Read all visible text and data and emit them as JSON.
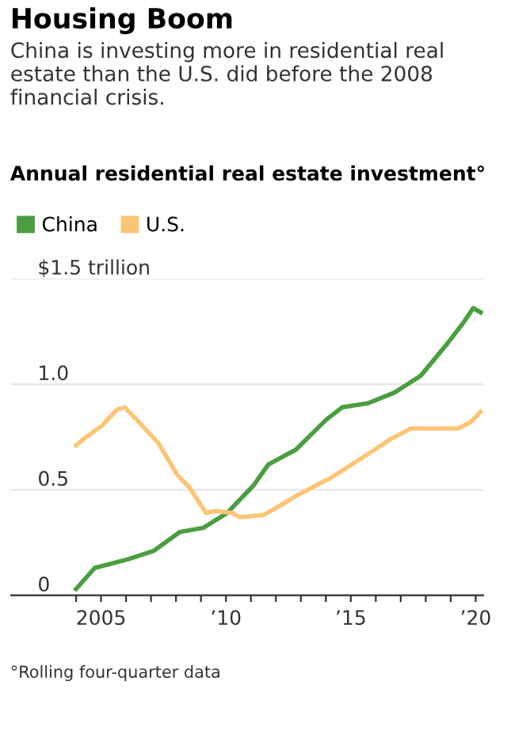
{
  "chart_data": {
    "type": "line",
    "title": "Housing Boom",
    "subtitle": "China is investing more in residential real estate than the U.S. did before the 2008 financial crisis.",
    "annotations": [
      "Annual residential real estate investment°",
      "°Rolling four-quarter data"
    ],
    "series": [
      {
        "name": "China",
        "color": "#4a9e3f",
        "x": [
          2004.0,
          2004.75,
          2006.05,
          2007.1,
          2008.15,
          2009.1,
          2010.05,
          2011.1,
          2011.7,
          2012.8,
          2014.0,
          2014.65,
          2015.7,
          2016.75,
          2017.8,
          2018.85,
          2019.5,
          2019.9,
          2020.2
        ],
        "values": [
          0.03,
          0.13,
          0.17,
          0.21,
          0.3,
          0.32,
          0.39,
          0.52,
          0.62,
          0.69,
          0.83,
          0.89,
          0.91,
          0.96,
          1.04,
          1.19,
          1.29,
          1.36,
          1.34
        ]
      },
      {
        "name": "U.S.",
        "color": "#fcc576",
        "x": [
          2004.0,
          2004.3,
          2005.0,
          2005.65,
          2005.95,
          2006.6,
          2007.3,
          2008.05,
          2008.55,
          2009.2,
          2009.6,
          2010.25,
          2010.55,
          2011.5,
          2012.1,
          2012.8,
          2013.6,
          2014.25,
          2015.7,
          2016.6,
          2017.4,
          2018.25,
          2019.3,
          2019.8,
          2020.2
        ],
        "values": [
          0.71,
          0.74,
          0.8,
          0.88,
          0.89,
          0.81,
          0.72,
          0.57,
          0.51,
          0.39,
          0.4,
          0.39,
          0.37,
          0.38,
          0.42,
          0.47,
          0.52,
          0.56,
          0.67,
          0.74,
          0.79,
          0.79,
          0.79,
          0.82,
          0.87
        ]
      }
    ],
    "xlim": [
      2001.4,
      2020.3
    ],
    "ylim": [
      0,
      1.5
    ],
    "xticks": [
      {
        "value": 2004,
        "label": null
      },
      {
        "value": 2005,
        "label": "2005"
      },
      {
        "value": 2006,
        "label": null
      },
      {
        "value": 2007,
        "label": null
      },
      {
        "value": 2008,
        "label": null
      },
      {
        "value": 2009,
        "label": null
      },
      {
        "value": 2010,
        "label": "’10"
      },
      {
        "value": 2011,
        "label": null
      },
      {
        "value": 2012,
        "label": null
      },
      {
        "value": 2013,
        "label": null
      },
      {
        "value": 2014,
        "label": null
      },
      {
        "value": 2015,
        "label": "’15"
      },
      {
        "value": 2016,
        "label": null
      },
      {
        "value": 2017,
        "label": null
      },
      {
        "value": 2018,
        "label": null
      },
      {
        "value": 2019,
        "label": null
      },
      {
        "value": 2020,
        "label": "’20"
      }
    ],
    "yticks": [
      0,
      0.5,
      {
        "value": 1.0,
        "label": "1.0"
      },
      {
        "value": 1.5,
        "label": "$1.5 trillion"
      }
    ],
    "grid": "y",
    "legend": "top left",
    "marker": "none",
    "line_style": "solid"
  }
}
